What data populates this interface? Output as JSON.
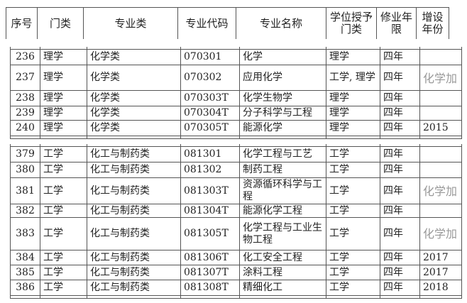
{
  "header": [
    "序号",
    "门类",
    "专业类",
    "专业代码",
    "专业名称",
    "学位授予门类",
    "修业年限",
    "增设年份"
  ],
  "section1": [
    {
      "no": "236",
      "category": "理学",
      "class": "化学类",
      "code": "070301",
      "name": "化学",
      "degree": "理学",
      "years": "四年",
      "added": ""
    },
    {
      "no": "237",
      "category": "理学",
      "class": "化学类",
      "code": "070302",
      "name": "应用化学",
      "degree": "工学, 理学",
      "years": "四年",
      "added": ""
    },
    {
      "no": "238",
      "category": "理学",
      "class": "化学类",
      "code": "070303T",
      "name": "化学生物学",
      "degree": "理学",
      "years": "四年",
      "added": ""
    },
    {
      "no": "239",
      "category": "理学",
      "class": "化学类",
      "code": "070304T",
      "name": "分子科学与工程",
      "degree": "理学",
      "years": "四年",
      "added": ""
    },
    {
      "no": "240",
      "category": "理学",
      "class": "化学类",
      "code": "070305T",
      "name": "能源化学",
      "degree": "理学",
      "years": "四年",
      "added": "2015"
    }
  ],
  "section2": [
    {
      "no": "379",
      "category": "工学",
      "class": "化工与制药类",
      "code": "081301",
      "name": "化学工程与工艺",
      "degree": "工学",
      "years": "四年",
      "added": ""
    },
    {
      "no": "380",
      "category": "工学",
      "class": "化工与制药类",
      "code": "081302",
      "name": "制药工程",
      "degree": "工学",
      "years": "四年",
      "added": ""
    },
    {
      "no": "381",
      "category": "工学",
      "class": "化工与制药类",
      "code": "081303T",
      "name": "资源循环科学与工程",
      "degree": "工学",
      "years": "四年",
      "added": ""
    },
    {
      "no": "382",
      "category": "工学",
      "class": "化工与制药类",
      "code": "081304T",
      "name": "能源化学工程",
      "degree": "工学",
      "years": "四年",
      "added": ""
    },
    {
      "no": "383",
      "category": "工学",
      "class": "化工与制药类",
      "code": "081305T",
      "name": "化学工程与工业生物工程",
      "degree": "工学",
      "years": "四年",
      "added": ""
    },
    {
      "no": "384",
      "category": "工学",
      "class": "化工与制药类",
      "code": "081306T",
      "name": "化工安全工程",
      "degree": "工学",
      "years": "四年",
      "added": "2017"
    },
    {
      "no": "385",
      "category": "工学",
      "class": "化工与制药类",
      "code": "081307T",
      "name": "涂料工程",
      "degree": "工学",
      "years": "四年",
      "added": "2017"
    },
    {
      "no": "386",
      "category": "工学",
      "class": "化工与制药类",
      "code": "081308T",
      "name": "精细化工",
      "degree": "工学",
      "years": "四年",
      "added": "2018"
    }
  ],
  "watermark": "化学加"
}
